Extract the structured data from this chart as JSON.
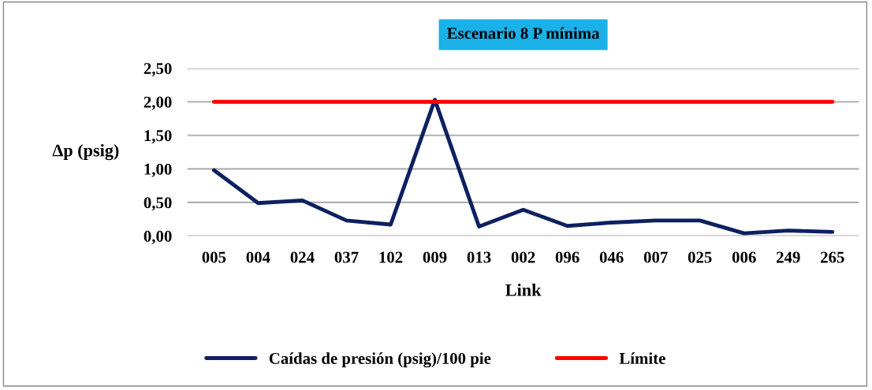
{
  "chart_data": {
    "type": "line",
    "title": "Escenario 8 P mínima",
    "xlabel": "Link",
    "ylabel": "Δp (psig)",
    "categories": [
      "005",
      "004",
      "024",
      "037",
      "102",
      "009",
      "013",
      "002",
      "096",
      "046",
      "007",
      "025",
      "006",
      "249",
      "265"
    ],
    "series": [
      {
        "name": "Caídas de presión (psig)/100 pie",
        "color": "#0d2160",
        "values": [
          0.98,
          0.49,
          0.53,
          0.23,
          0.17,
          2.03,
          0.14,
          0.39,
          0.15,
          0.2,
          0.23,
          0.23,
          0.04,
          0.08,
          0.06
        ]
      },
      {
        "name": "Límite",
        "color": "#ff0000",
        "values": [
          2.0,
          2.0,
          2.0,
          2.0,
          2.0,
          2.0,
          2.0,
          2.0,
          2.0,
          2.0,
          2.0,
          2.0,
          2.0,
          2.0,
          2.0
        ]
      }
    ],
    "ylim": [
      0,
      2.5
    ],
    "yticks": [
      {
        "value": 0,
        "label": "0,00"
      },
      {
        "value": 0.5,
        "label": "0,50"
      },
      {
        "value": 1.0,
        "label": "1,00"
      },
      {
        "value": 1.5,
        "label": "1,50"
      },
      {
        "value": 2.0,
        "label": "2,00"
      },
      {
        "value": 2.5,
        "label": "2,50"
      }
    ],
    "grid": "y",
    "legend": "bottom",
    "marker": "none",
    "line_style": "solid"
  }
}
